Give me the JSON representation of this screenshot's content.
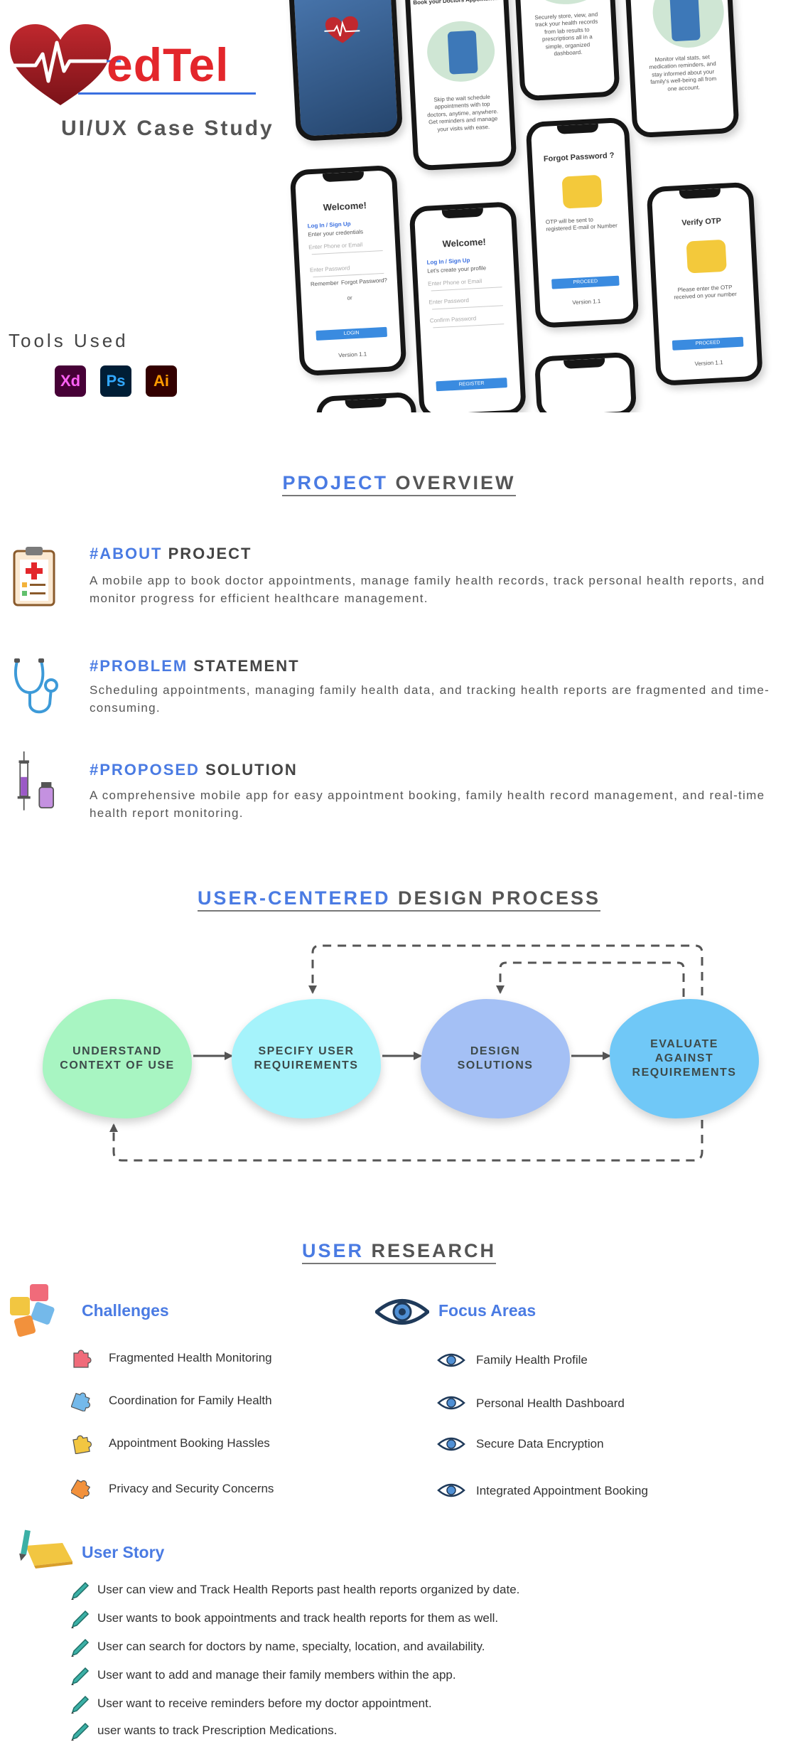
{
  "hero": {
    "logo_e": "edTel",
    "subtitle": "UI/UX Case Study",
    "tools_title": "Tools Used",
    "tools": [
      "Xd",
      "Ps",
      "Ai"
    ],
    "colors": {
      "red": "#e3262b",
      "blue": "#3a6fe0"
    }
  },
  "phones": {
    "appointment_title": "Book your Doctors Appointment",
    "appointment_text": "Skip the wait schedule appointments with top doctors, anytime, anywhere. Get reminders and manage your visits with ease.",
    "records_text": "Securely store, view, and track your health records from lab results to prescriptions all in a simple, organized dashboard.",
    "monitor_text": "Monitor vital stats, set medication reminders, and stay informed about your family's well-being all from one account.",
    "welcome": "Welcome!",
    "login_signup": "Log In / Sign Up",
    "enter_credentials": "Enter your credentials",
    "create_profile": "Let's create your profile",
    "phone_email": "Enter Phone or Email",
    "password": "Enter Password",
    "confirm_password": "Confirm Password",
    "remember": "Remember",
    "forgot_q": "Forgot Password?",
    "or": "or",
    "login_btn": "LOGIN",
    "register_btn": "REGISTER",
    "version": "Version 1.1",
    "forgot_title": "Forgot Password ?",
    "otp_sent": "OTP will be sent to registered E-mail or Number",
    "proceed_btn": "PROCEED",
    "verify_title": "Verify OTP",
    "otp_enter": "Please enter the OTP received on your number"
  },
  "overview": {
    "title_accent": "PROJECT",
    "title_rest": "OVERVIEW",
    "items": [
      {
        "accent": "#ABOUT",
        "rest": "PROJECT",
        "body": "A mobile app to book doctor appointments, manage family health records, track personal health reports, and monitor progress for efficient healthcare management.",
        "icon": "clipboard-icon"
      },
      {
        "accent": "#PROBLEM",
        "rest": "STATEMENT",
        "body": "Scheduling appointments, managing family health data, and tracking health reports are fragmented and time-consuming.",
        "icon": "stethoscope-icon"
      },
      {
        "accent": "#PROPOSED",
        "rest": "SOLUTION",
        "body": "A comprehensive mobile app for easy appointment booking, family health record management, and real-time health report monitoring.",
        "icon": "syringe-icon"
      }
    ]
  },
  "process": {
    "title_accent": "USER-CENTERED",
    "title_rest": "DESIGN PROCESS",
    "steps": [
      {
        "line1": "UNDERSTAND",
        "line2": "CONTEXT OF USE",
        "line3": ""
      },
      {
        "line1": "SPECIFY USER",
        "line2": "REQUIREMENTS",
        "line3": ""
      },
      {
        "line1": "DESIGN",
        "line2": "SOLUTIONS",
        "line3": ""
      },
      {
        "line1": "EVALUATE",
        "line2": "AGAINST",
        "line3": "REQUIREMENTS"
      }
    ]
  },
  "research": {
    "title_accent": "USER",
    "title_rest": "RESEARCH",
    "challenges_title": "Challenges",
    "challenges": [
      {
        "label": "Fragmented Health Monitoring",
        "color": "#f06b7a"
      },
      {
        "label": "Coordination for Family Health",
        "color": "#74b9ea"
      },
      {
        "label": "Appointment Booking Hassles",
        "color": "#f2c641"
      },
      {
        "label": "Privacy and Security Concerns",
        "color": "#f2913c"
      }
    ],
    "focus_title": "Focus Areas",
    "focus": [
      "Family Health Profile",
      "Personal Health Dashboard",
      "Secure Data Encryption",
      "Integrated Appointment Booking"
    ],
    "story_title": "User Story",
    "stories": [
      "User can view and Track Health Reports past health reports organized by date.",
      "User wants to book appointments and track health reports for them as well.",
      "User can search for doctors by name, specialty, location, and availability.",
      "User want to add and manage their family members within the app.",
      "User want to receive reminders before my doctor appointment.",
      "user wants to track Prescription Medications."
    ]
  }
}
